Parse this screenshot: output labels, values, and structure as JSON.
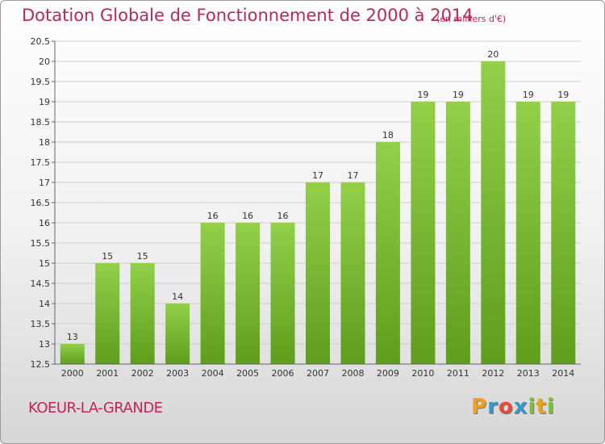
{
  "chart_data": {
    "type": "bar",
    "title": "Dotation Globale de Fonctionnement de 2000 à 2014",
    "unit": "(en milliers d'€)",
    "categories": [
      "2000",
      "2001",
      "2002",
      "2003",
      "2004",
      "2005",
      "2006",
      "2007",
      "2008",
      "2009",
      "2010",
      "2011",
      "2012",
      "2013",
      "2014"
    ],
    "values": [
      13,
      15,
      15,
      14,
      16,
      16,
      16,
      17,
      17,
      18,
      19,
      19,
      20,
      19,
      19
    ],
    "data_labels": [
      "13",
      "15",
      "15",
      "14",
      "16",
      "16",
      "16",
      "17",
      "17",
      "18",
      "19",
      "19",
      "20",
      "19",
      "19"
    ],
    "ylim": [
      12.5,
      20.5
    ],
    "yticks": [
      "12.5",
      "13",
      "13.5",
      "14",
      "14.5",
      "15",
      "15.5",
      "16",
      "16.5",
      "17",
      "17.5",
      "18",
      "18.5",
      "19",
      "19.5",
      "20",
      "20.5"
    ],
    "grid": true,
    "bar_color": "#7cc034"
  },
  "commune": "KOEUR-LA-GRANDE",
  "logo": {
    "letters": [
      "P",
      "r",
      "o",
      "x",
      "i",
      "t",
      "i"
    ],
    "colors": [
      "#f0a020",
      "#3399cc",
      "#e84c3d",
      "#3399cc",
      "#7cc034",
      "#f0a020",
      "#7cc034"
    ]
  }
}
